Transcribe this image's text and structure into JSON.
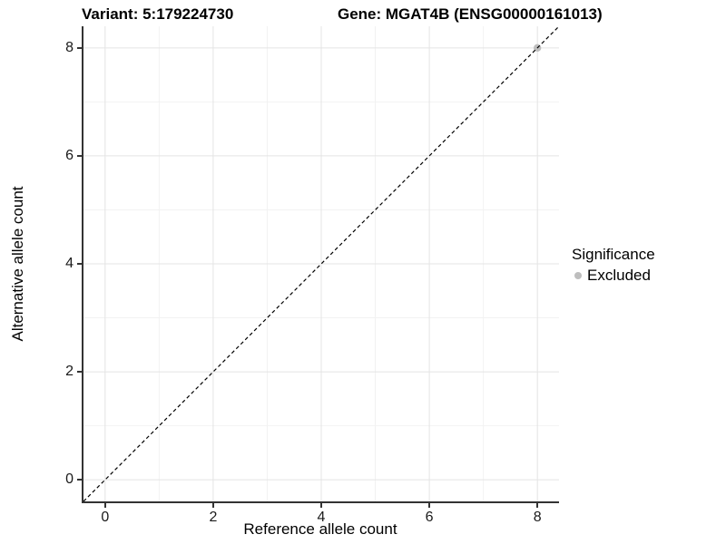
{
  "chart_data": {
    "type": "scatter",
    "titles": {
      "variant": "Variant: 5:179224730",
      "gene": "Gene: MGAT4B (ENSG00000161013)"
    },
    "xlabel": "Reference allele count",
    "ylabel": "Alternative allele count",
    "xlim": [
      -0.4,
      8.4
    ],
    "ylim": [
      -0.4,
      8.4
    ],
    "xticks": [
      0,
      2,
      4,
      6,
      8
    ],
    "yticks": [
      0,
      2,
      4,
      6,
      8
    ],
    "minor_xticks": [
      1,
      3,
      5,
      7
    ],
    "minor_yticks": [
      1,
      3,
      5,
      7
    ],
    "grid": "major+minor",
    "reference_line": {
      "type": "identity",
      "slope": 1,
      "intercept": 0,
      "style": "dashed",
      "color": "#000000"
    },
    "series": [
      {
        "name": "Excluded",
        "color": "#bebebe",
        "points": [
          {
            "x": 8,
            "y": 8
          }
        ]
      }
    ],
    "legend": {
      "title": "Significance",
      "position": "right",
      "items": [
        {
          "label": "Excluded",
          "color": "#bebebe"
        }
      ]
    },
    "colors": {
      "major_grid": "#e4e4e4",
      "minor_grid": "#f2f2f2",
      "axis_line": "#333333",
      "tick_label": "#1a1a1a"
    }
  }
}
